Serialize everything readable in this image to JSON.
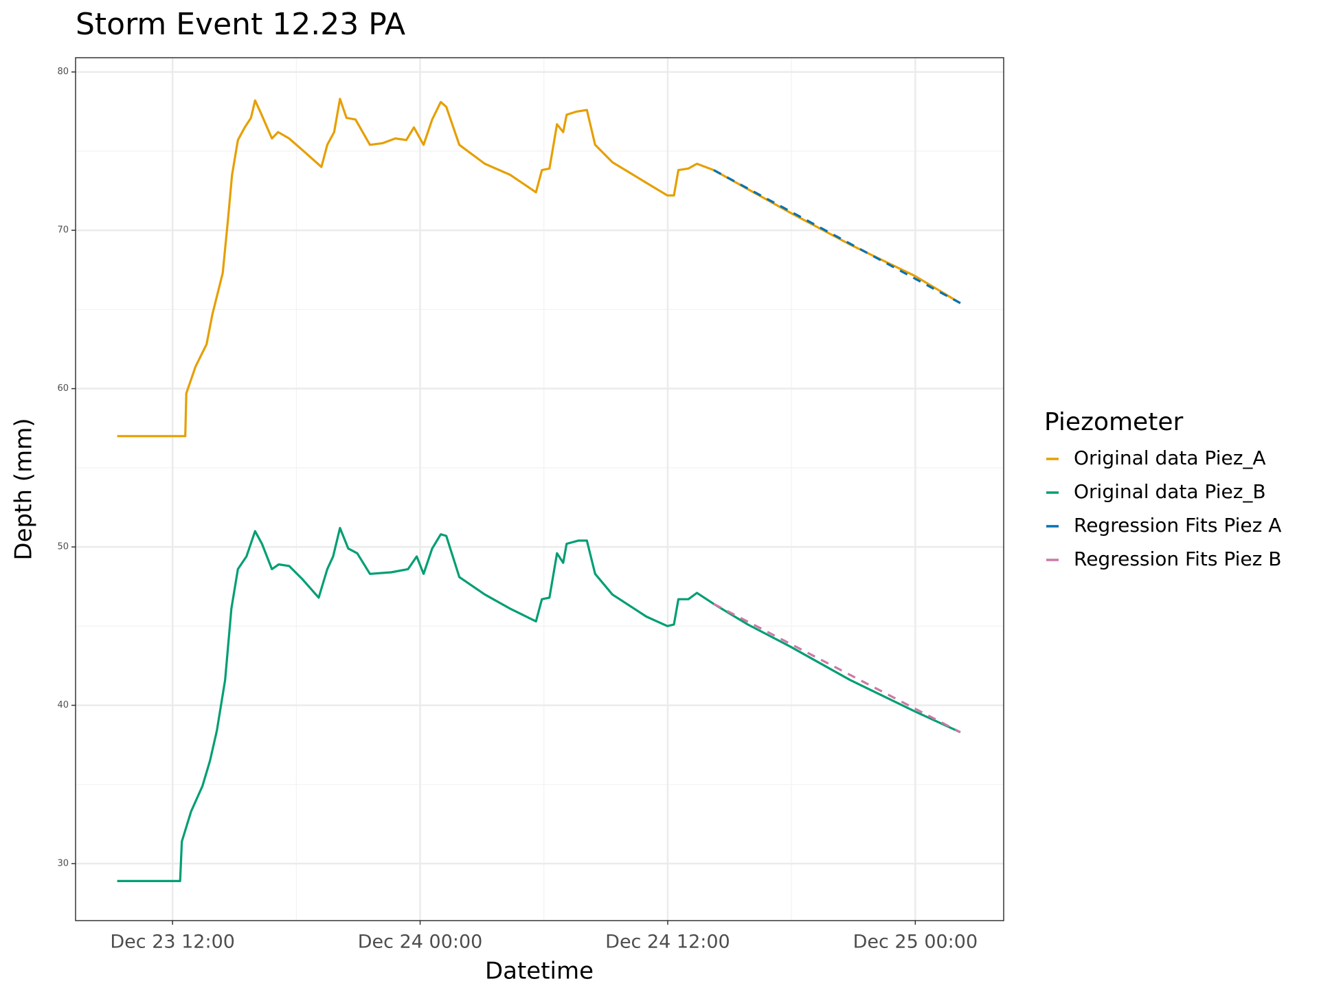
{
  "chart_data": {
    "type": "line",
    "title": "Storm Event 12.23 PA",
    "x_label": "Datetime",
    "y_label": "Depth (mm)",
    "legend_title": "Piezometer",
    "legend_position": "right",
    "grid": true,
    "minor_grid": true,
    "xlim": [
      "Dec 23 07:18",
      "Dec 25 04:17"
    ],
    "xticks": [
      "Dec 23 12:00",
      "Dec 24 00:00",
      "Dec 24 12:00",
      "Dec 25 00:00"
    ],
    "ylim": [
      26.4,
      80.9
    ],
    "yticks": [
      30,
      40,
      50,
      60,
      70,
      80
    ],
    "series": [
      {
        "name": "Original data Piez_A",
        "color": "#E69F00",
        "dashed": false,
        "x": [
          "Dec 23 09:19",
          "Dec 23 12:37",
          "Dec 23 12:40",
          "Dec 23 13:07",
          "Dec 23 13:39",
          "Dec 23 13:56",
          "Dec 23 14:26",
          "Dec 23 14:41",
          "Dec 23 14:53",
          "Dec 23 15:10",
          "Dec 23 15:30",
          "Dec 23 15:48",
          "Dec 23 16:00",
          "Dec 23 16:17",
          "Dec 23 16:49",
          "Dec 23 17:07",
          "Dec 23 17:39",
          "Dec 23 18:16",
          "Dec 23 19:13",
          "Dec 23 19:30",
          "Dec 23 19:50",
          "Dec 23 20:07",
          "Dec 23 20:26",
          "Dec 23 20:52",
          "Dec 23 21:34",
          "Dec 23 22:11",
          "Dec 23 22:48",
          "Dec 23 23:20",
          "Dec 23 23:42",
          "Dec 24 00:10",
          "Dec 24 00:35",
          "Dec 24 01:00",
          "Dec 24 01:16",
          "Dec 24 01:54",
          "Dec 24 03:08",
          "Dec 24 04:22",
          "Dec 24 05:37",
          "Dec 24 05:54",
          "Dec 24 06:16",
          "Dec 24 06:38",
          "Dec 24 06:56",
          "Dec 24 07:06",
          "Dec 24 07:35",
          "Dec 24 08:05",
          "Dec 24 08:29",
          "Dec 24 09:19",
          "Dec 24 10:58",
          "Dec 24 11:59",
          "Dec 24 12:18",
          "Dec 24 12:31",
          "Dec 24 13:00",
          "Dec 24 13:25",
          "Dec 24 14:14",
          "Dec 24 15:53",
          "Dec 24 17:57",
          "Dec 24 20:50",
          "Dec 25 00:00",
          "Dec 25 02:11"
        ],
        "values": [
          57.0,
          57.0,
          59.7,
          61.4,
          62.8,
          64.7,
          67.3,
          70.6,
          73.5,
          75.7,
          76.5,
          77.1,
          78.2,
          77.4,
          75.8,
          76.2,
          75.8,
          75.1,
          74.0,
          75.4,
          76.2,
          78.3,
          77.1,
          77.0,
          75.4,
          75.5,
          75.8,
          75.7,
          76.5,
          75.4,
          77.0,
          78.1,
          77.8,
          75.4,
          74.2,
          73.5,
          72.4,
          73.8,
          73.9,
          76.7,
          76.2,
          77.3,
          77.5,
          77.6,
          75.4,
          74.3,
          73.0,
          72.2,
          72.2,
          73.8,
          73.9,
          74.2,
          73.8,
          72.6,
          71.1,
          69.1,
          67.1,
          65.4
        ]
      },
      {
        "name": "Original data Piez_B",
        "color": "#009E73",
        "dashed": false,
        "x": [
          "Dec 23 09:19",
          "Dec 23 12:22",
          "Dec 23 12:27",
          "Dec 23 12:54",
          "Dec 23 13:27",
          "Dec 23 13:49",
          "Dec 23 14:09",
          "Dec 23 14:33",
          "Dec 23 14:51",
          "Dec 23 15:10",
          "Dec 23 15:35",
          "Dec 23 16:00",
          "Dec 23 16:20",
          "Dec 23 16:49",
          "Dec 23 17:09",
          "Dec 23 17:39",
          "Dec 23 18:16",
          "Dec 23 19:05",
          "Dec 23 19:30",
          "Dec 23 19:47",
          "Dec 23 20:07",
          "Dec 23 20:31",
          "Dec 23 20:57",
          "Dec 23 21:34",
          "Dec 23 22:36",
          "Dec 23 23:25",
          "Dec 23 23:50",
          "Dec 24 00:10",
          "Dec 24 00:35",
          "Dec 24 01:00",
          "Dec 24 01:16",
          "Dec 24 01:54",
          "Dec 24 03:08",
          "Dec 24 04:22",
          "Dec 24 05:37",
          "Dec 24 05:54",
          "Dec 24 06:16",
          "Dec 24 06:38",
          "Dec 24 06:56",
          "Dec 24 07:06",
          "Dec 24 07:40",
          "Dec 24 08:05",
          "Dec 24 08:29",
          "Dec 24 09:19",
          "Dec 24 10:58",
          "Dec 24 11:59",
          "Dec 24 12:18",
          "Dec 24 12:31",
          "Dec 24 13:00",
          "Dec 24 13:25",
          "Dec 24 14:14",
          "Dec 24 15:53",
          "Dec 24 17:57",
          "Dec 24 20:50",
          "Dec 25 00:00",
          "Dec 25 02:11"
        ],
        "values": [
          28.9,
          28.9,
          31.4,
          33.3,
          34.9,
          36.5,
          38.4,
          41.6,
          46.1,
          48.6,
          49.4,
          51.0,
          50.2,
          48.6,
          48.9,
          48.8,
          48.0,
          46.8,
          48.6,
          49.4,
          51.2,
          49.9,
          49.6,
          48.3,
          48.4,
          48.6,
          49.4,
          48.3,
          49.9,
          50.8,
          50.7,
          48.1,
          47.0,
          46.1,
          45.3,
          46.7,
          46.8,
          49.6,
          49.0,
          50.2,
          50.4,
          50.4,
          48.3,
          47.0,
          45.6,
          45.0,
          45.1,
          46.7,
          46.7,
          47.1,
          46.4,
          45.1,
          43.7,
          41.6,
          39.6,
          38.3
        ]
      },
      {
        "name": "Regression Fits Piez A",
        "color": "#0072B2",
        "dashed": true,
        "x": [
          "Dec 24 14:14",
          "Dec 25 02:11"
        ],
        "values": [
          73.8,
          65.4
        ]
      },
      {
        "name": "Regression Fits Piez B",
        "color": "#CC79A7",
        "dashed": true,
        "x": [
          "Dec 24 14:14",
          "Dec 25 02:11"
        ],
        "values": [
          46.4,
          38.3
        ]
      }
    ]
  }
}
